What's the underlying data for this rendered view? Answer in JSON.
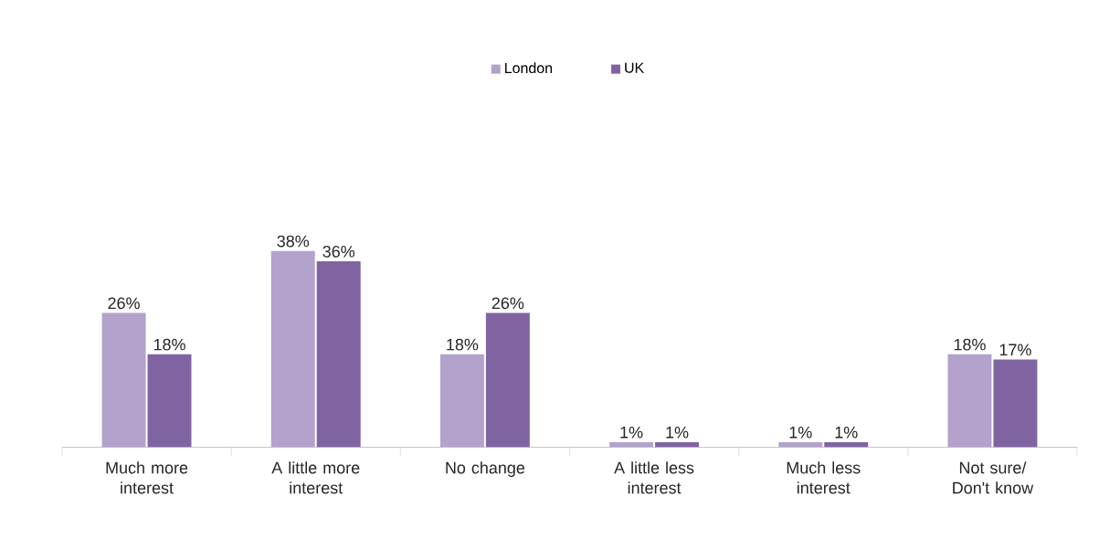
{
  "chart_data": {
    "type": "bar",
    "categories": [
      "Much more interest",
      "A little more interest",
      "No change",
      "A little less interest",
      "Much less interest",
      "Not sure/ Don't know"
    ],
    "series": [
      {
        "name": "London",
        "color": "#b3a2cc",
        "values": [
          26,
          38,
          18,
          1,
          1,
          18
        ],
        "value_labels": [
          "26%",
          "38%",
          "18%",
          "1%",
          "1%",
          "18%"
        ]
      },
      {
        "name": "UK",
        "color": "#8064a2",
        "values": [
          18,
          36,
          26,
          1,
          1,
          17
        ],
        "value_labels": [
          "18%",
          "36%",
          "26%",
          "1%",
          "1%",
          "17%"
        ]
      }
    ],
    "legend": "top"
  }
}
